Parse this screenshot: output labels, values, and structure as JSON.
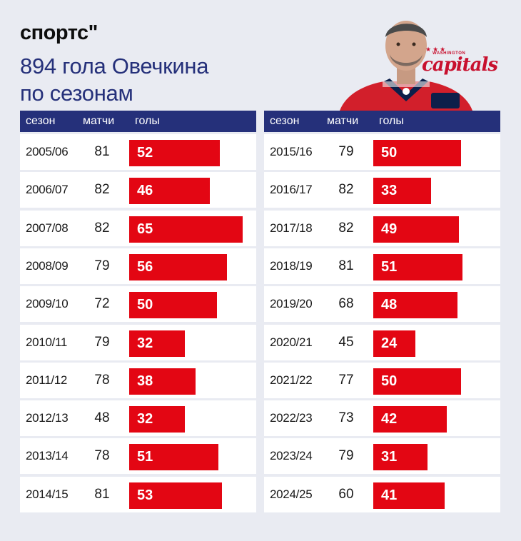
{
  "brand": "спортс\"",
  "title_lines": [
    "894 гола Овечкина",
    "по сезонам"
  ],
  "logo": {
    "stars": "★★★",
    "city": "WASHINGTON",
    "name": "capitals"
  },
  "colors": {
    "header_bg": "#25307a",
    "bar": "#e30613",
    "title": "#25307a",
    "background": "#e9ebf2"
  },
  "columns": {
    "season": "сезон",
    "games": "матчи",
    "goals": "голы"
  },
  "chart_data": {
    "type": "bar",
    "title": "894 гола Овечкина по сезонам",
    "categories": [
      "2005/06",
      "2006/07",
      "2007/08",
      "2008/09",
      "2009/10",
      "2010/11",
      "2011/12",
      "2012/13",
      "2013/14",
      "2014/15",
      "2015/16",
      "2016/17",
      "2017/18",
      "2018/19",
      "2019/20",
      "2020/21",
      "2021/22",
      "2022/23",
      "2023/24",
      "2024/25"
    ],
    "series": [
      {
        "name": "матчи",
        "values": [
          81,
          82,
          82,
          79,
          72,
          79,
          78,
          48,
          78,
          81,
          79,
          82,
          82,
          81,
          68,
          45,
          77,
          73,
          79,
          60
        ]
      },
      {
        "name": "голы",
        "values": [
          52,
          46,
          65,
          56,
          50,
          32,
          38,
          32,
          51,
          53,
          50,
          33,
          49,
          51,
          48,
          24,
          50,
          42,
          31,
          41
        ]
      }
    ],
    "xlabel": "сезон",
    "ylabel": "голы"
  }
}
